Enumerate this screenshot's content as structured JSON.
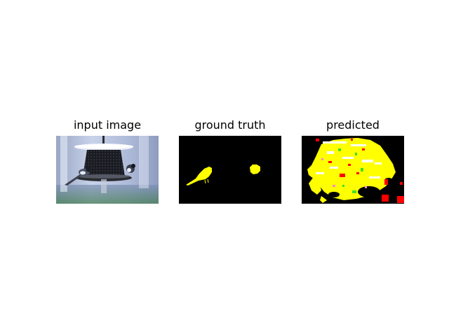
{
  "figure": {
    "panels": [
      {
        "title": "input image"
      },
      {
        "title": "ground truth"
      },
      {
        "title": "predicted"
      }
    ]
  },
  "colors": {
    "background": "#ffffff",
    "mask_background": "#000000",
    "mask_bird": "#ffff00",
    "pred_red": "#ff0000",
    "pred_green": "#44dd22",
    "pred_white": "#ffffff",
    "pred_pink": "#ff88cc"
  }
}
